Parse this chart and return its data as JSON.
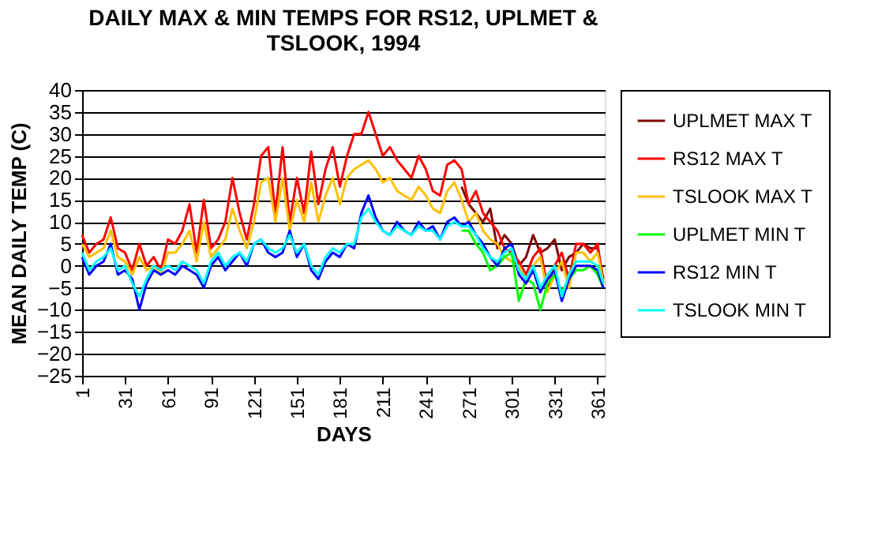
{
  "chart_data": {
    "type": "line",
    "title": "DAILY MAX & MIN TEMPS FOR RS12, UPLMET &\nTSLOOK, 1994",
    "xlabel": "DAYS",
    "ylabel": "MEAN DAILY TEMP (C)",
    "x": [
      1,
      6,
      11,
      16,
      21,
      26,
      31,
      36,
      41,
      46,
      51,
      56,
      61,
      66,
      71,
      76,
      81,
      86,
      91,
      96,
      101,
      106,
      111,
      116,
      121,
      126,
      131,
      136,
      141,
      146,
      151,
      156,
      161,
      166,
      171,
      176,
      181,
      186,
      191,
      196,
      201,
      206,
      211,
      216,
      221,
      226,
      231,
      236,
      241,
      246,
      251,
      256,
      261,
      266,
      271,
      276,
      281,
      286,
      291,
      296,
      301,
      306,
      311,
      316,
      321,
      326,
      331,
      336,
      341,
      346,
      351,
      356,
      361,
      365
    ],
    "series": [
      {
        "name": "UPLMET MAX T",
        "color": "#800000",
        "x": [
          266,
          271,
          276,
          281,
          286,
          291,
          296,
          301,
          306,
          311,
          316,
          321,
          326,
          331,
          336,
          341,
          346,
          351,
          356,
          361,
          365
        ],
        "values": [
          18,
          14,
          12,
          10,
          13,
          4,
          7,
          5,
          0,
          2,
          7,
          3,
          4,
          6,
          -1,
          2,
          3,
          5,
          4,
          4,
          -3
        ]
      },
      {
        "name": "RS12 MAX T",
        "color": "#ff0000",
        "values": [
          7,
          3,
          5,
          6,
          11,
          4,
          3,
          -1,
          5,
          0,
          2,
          -1,
          6,
          5,
          8,
          14,
          3,
          15,
          4,
          6,
          10,
          20,
          12,
          6,
          14,
          25,
          27,
          12,
          27,
          10,
          20,
          12,
          26,
          14,
          22,
          27,
          18,
          25,
          30,
          30,
          35,
          30,
          25,
          27,
          24,
          22,
          20,
          25,
          22,
          17,
          16,
          23,
          24,
          22,
          14,
          17,
          12,
          10,
          8,
          4,
          3,
          1,
          -2,
          2,
          4,
          -5,
          0,
          3,
          -3,
          5,
          5,
          3,
          5,
          -4
        ]
      },
      {
        "name": "TSLOOK MAX T",
        "color": "#ffc000",
        "values": [
          5,
          2,
          3,
          4,
          8,
          2,
          1,
          -2,
          2,
          -1,
          0,
          -2,
          3,
          3,
          5,
          8,
          1,
          10,
          2,
          4,
          6,
          13,
          8,
          4,
          10,
          19,
          20,
          10,
          20,
          8,
          15,
          10,
          19,
          10,
          16,
          20,
          14,
          20,
          22,
          23,
          24,
          22,
          19,
          20,
          17,
          16,
          15,
          18,
          16,
          13,
          12,
          17,
          19,
          15,
          10,
          12,
          8,
          6,
          5,
          2,
          1,
          0,
          -3,
          0,
          2,
          -6,
          -2,
          1,
          -5,
          3,
          3,
          1,
          3,
          -4
        ]
      },
      {
        "name": "UPLMET MIN T",
        "color": "#00ff00",
        "x": [
          266,
          271,
          276,
          281,
          286,
          291,
          296,
          301,
          306,
          311,
          316,
          321,
          326,
          331,
          336,
          341,
          346,
          351,
          356,
          361,
          365
        ],
        "values": [
          8,
          8,
          5,
          3,
          -1,
          0,
          2,
          3,
          -8,
          -3,
          -4,
          -10,
          -4,
          -2,
          -6,
          -3,
          -1,
          -1,
          0,
          -2,
          -5
        ]
      },
      {
        "name": "RS12 MIN T",
        "color": "#0000ff",
        "values": [
          2,
          -2,
          0,
          1,
          5,
          -2,
          -1,
          -3,
          -10,
          -4,
          -1,
          -2,
          -1,
          -2,
          0,
          -1,
          -2,
          -5,
          0,
          2,
          -1,
          1,
          3,
          0,
          5,
          6,
          3,
          2,
          3,
          8,
          2,
          5,
          -1,
          -3,
          1,
          3,
          2,
          5,
          4,
          12,
          16,
          11,
          8,
          7,
          10,
          8,
          7,
          10,
          8,
          9,
          6,
          10,
          11,
          9,
          10,
          7,
          5,
          2,
          0,
          4,
          5,
          -2,
          -4,
          -1,
          -6,
          -3,
          -1,
          -8,
          -3,
          0,
          0,
          0,
          -1,
          -5
        ]
      },
      {
        "name": "TSLOOK MIN T",
        "color": "#00ffff",
        "values": [
          3,
          -1,
          1,
          2,
          4,
          -1,
          0,
          -4,
          -7,
          -3,
          0,
          -1,
          0,
          -1,
          1,
          0,
          -1,
          -4,
          1,
          3,
          0,
          2,
          3,
          1,
          5,
          6,
          4,
          3,
          4,
          7,
          3,
          5,
          0,
          -2,
          2,
          4,
          3,
          5,
          5,
          11,
          13,
          10,
          8,
          7,
          9,
          8,
          7,
          9,
          8,
          8,
          6,
          9,
          10,
          9,
          9,
          7,
          4,
          2,
          1,
          3,
          4,
          -1,
          -3,
          0,
          -5,
          -2,
          0,
          -7,
          -2,
          1,
          1,
          1,
          0,
          -4
        ]
      }
    ],
    "xlim": [
      1,
      366
    ],
    "xticks": [
      1,
      31,
      61,
      91,
      121,
      151,
      181,
      211,
      241,
      271,
      301,
      331,
      361
    ],
    "ylim": [
      -25,
      40
    ],
    "yticks": [
      -25,
      -20,
      -15,
      -10,
      -5,
      0,
      5,
      10,
      15,
      20,
      25,
      30,
      35,
      40
    ],
    "grid": "y",
    "legend": "right",
    "marker": "none",
    "line_style": "solid"
  }
}
